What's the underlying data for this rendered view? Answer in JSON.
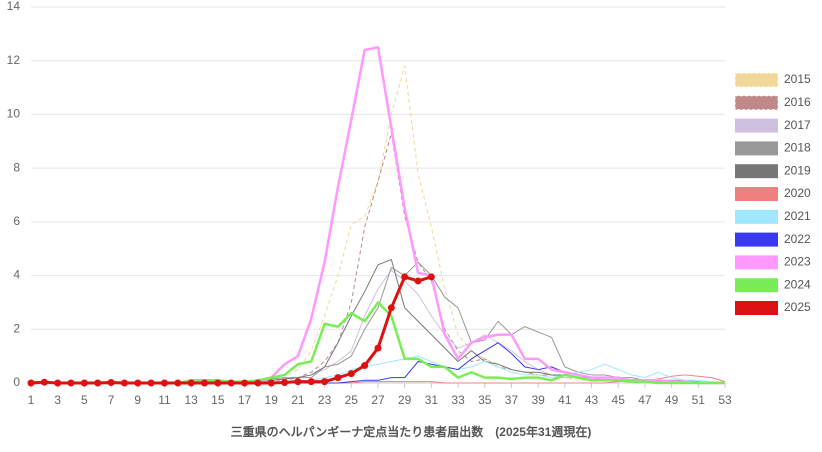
{
  "chart_data": {
    "type": "line",
    "xlabel": "三重県のヘルパンギーナ定点当たり患者届出数　(2025年31週現在)",
    "x": [
      1,
      2,
      3,
      4,
      5,
      6,
      7,
      8,
      9,
      10,
      11,
      12,
      13,
      14,
      15,
      16,
      17,
      18,
      19,
      20,
      21,
      22,
      23,
      24,
      25,
      26,
      27,
      28,
      29,
      30,
      31,
      32,
      33,
      34,
      35,
      36,
      37,
      38,
      39,
      40,
      41,
      42,
      43,
      44,
      45,
      46,
      47,
      48,
      49,
      50,
      51,
      52,
      53
    ],
    "xlim": [
      1,
      53
    ],
    "xticks": [
      1,
      3,
      5,
      7,
      9,
      11,
      13,
      15,
      17,
      19,
      21,
      23,
      25,
      27,
      29,
      31,
      33,
      35,
      37,
      39,
      41,
      43,
      45,
      47,
      49,
      51,
      53
    ],
    "ylim": [
      0,
      14
    ],
    "yticks": [
      0,
      2,
      4,
      6,
      8,
      10,
      12,
      14
    ],
    "grid": true,
    "legend": "right",
    "series": [
      {
        "name": "2015",
        "color": "#f0d898",
        "dash": true,
        "line_width": 1,
        "values": [
          0,
          0,
          0,
          0.05,
          0,
          0,
          0,
          0,
          0,
          0,
          0,
          0,
          0,
          0,
          0,
          0,
          0.05,
          0.1,
          0.1,
          0.2,
          0.5,
          1.2,
          2.5,
          4,
          5.9,
          6.2,
          7.5,
          10,
          11.8,
          7.8,
          5.8,
          3.5,
          1.8,
          1.2,
          0.9,
          0.7,
          0.5,
          0.4,
          0.3,
          0.3,
          0.2,
          0.1,
          0.1,
          0.1,
          0.1,
          0.1,
          0.05,
          0.05,
          0,
          0,
          0,
          0,
          0
        ]
      },
      {
        "name": "2016",
        "color": "#c08888",
        "dash": true,
        "line_width": 1,
        "values": [
          0,
          0,
          0,
          0,
          0,
          0,
          0,
          0,
          0,
          0,
          0,
          0,
          0,
          0,
          0,
          0,
          0,
          0.05,
          0.1,
          0.1,
          0.2,
          0.4,
          0.8,
          1.5,
          3,
          5.8,
          7.5,
          9.3,
          6.2,
          4.5,
          3.8,
          2,
          1.2,
          0.8,
          0.9,
          0.6,
          0.5,
          0.4,
          0.3,
          0.3,
          0.2,
          0.2,
          0.1,
          0.1,
          0.1,
          0.1,
          0.05,
          0,
          0,
          0,
          0,
          0,
          0
        ]
      },
      {
        "name": "2017",
        "color": "#d0c0e0",
        "dash": false,
        "line_width": 1,
        "values": [
          0.05,
          0,
          0,
          0,
          0,
          0,
          0,
          0,
          0,
          0,
          0,
          0,
          0,
          0,
          0,
          0,
          0,
          0.05,
          0.1,
          0.15,
          0.2,
          0.3,
          0.5,
          0.8,
          1.2,
          2.5,
          3.5,
          4.2,
          3.8,
          3.3,
          2.5,
          1.8,
          1.3,
          1.5,
          1.8,
          1.5,
          1.2,
          0.8,
          0.5,
          0.3,
          0.2,
          0.2,
          0.1,
          0.1,
          0.1,
          0.1,
          0.05,
          0.05,
          0,
          0,
          0,
          0,
          0
        ]
      },
      {
        "name": "2018",
        "color": "#999999",
        "dash": false,
        "line_width": 1,
        "values": [
          0,
          0,
          0,
          0,
          0,
          0,
          0,
          0,
          0,
          0,
          0,
          0,
          0,
          0,
          0,
          0,
          0,
          0.1,
          0.15,
          0.2,
          0.2,
          0.2,
          0.6,
          0.7,
          1.0,
          2.0,
          2.8,
          4.3,
          4.0,
          4.5,
          4.0,
          3.2,
          2.8,
          1.5,
          1.6,
          2.3,
          1.8,
          2.1,
          1.9,
          1.7,
          0.6,
          0.4,
          0.3,
          0.3,
          0.2,
          0.2,
          0.1,
          0.1,
          0.1,
          0.1,
          0.05,
          0,
          0
        ]
      },
      {
        "name": "2019",
        "color": "#777777",
        "dash": false,
        "line_width": 1,
        "values": [
          0,
          0,
          0,
          0,
          0,
          0,
          0,
          0,
          0,
          0,
          0,
          0,
          0,
          0,
          0,
          0,
          0,
          0.05,
          0.1,
          0.15,
          0.2,
          0.3,
          0.6,
          1.5,
          2.5,
          3.4,
          4.4,
          4.6,
          2.8,
          2.3,
          1.8,
          1.3,
          0.8,
          1.2,
          0.8,
          0.7,
          0.5,
          0.4,
          0.4,
          0.3,
          0.3,
          0.2,
          0.2,
          0.1,
          0.1,
          0.1,
          0.1,
          0.05,
          0.05,
          0,
          0,
          0,
          0
        ]
      },
      {
        "name": "2020",
        "color": "#f08080",
        "dash": false,
        "line_width": 1,
        "values": [
          0,
          0,
          0,
          0,
          0,
          0,
          0,
          0,
          0,
          0,
          0,
          0,
          0,
          0,
          0,
          0,
          0,
          0,
          0,
          0,
          0,
          0,
          0,
          0,
          0,
          0.05,
          0.05,
          0.05,
          0.05,
          0.05,
          0.05,
          0,
          0,
          0,
          0,
          0,
          0,
          0,
          0,
          0,
          0,
          0,
          0,
          0,
          0.05,
          0.1,
          0.1,
          0.15,
          0.25,
          0.3,
          0.25,
          0.2,
          0.05
        ]
      },
      {
        "name": "2021",
        "color": "#a0e8ff",
        "dash": false,
        "line_width": 1,
        "values": [
          0,
          0,
          0,
          0,
          0,
          0,
          0,
          0,
          0,
          0,
          0,
          0,
          0,
          0,
          0,
          0,
          0,
          0,
          0,
          0,
          0.05,
          0.1,
          0.2,
          0.3,
          0.5,
          0.6,
          0.7,
          0.8,
          0.9,
          1.0,
          0.8,
          0.6,
          0.5,
          0.6,
          0.8,
          0.6,
          0.4,
          0.3,
          0.3,
          0.2,
          0.3,
          0.4,
          0.5,
          0.7,
          0.5,
          0.3,
          0.2,
          0.4,
          0.2,
          0.1,
          0.1,
          0.05,
          0
        ]
      },
      {
        "name": "2022",
        "color": "#3838f0",
        "dash": false,
        "line_width": 1,
        "values": [
          0,
          0,
          0,
          0,
          0,
          0,
          0,
          0,
          0,
          0,
          0,
          0,
          0,
          0,
          0,
          0,
          0,
          0,
          0,
          0,
          0,
          0,
          0,
          0,
          0.05,
          0.1,
          0.1,
          0.2,
          0.2,
          0.8,
          0.7,
          0.6,
          0.5,
          0.9,
          1.2,
          1.5,
          1.1,
          0.6,
          0.5,
          0.6,
          0.4,
          0.3,
          0.2,
          0.2,
          0.2,
          0.1,
          0.1,
          0.1,
          0.05,
          0.05,
          0,
          0,
          0
        ]
      },
      {
        "name": "2023",
        "color": "#ff99ff",
        "dash": false,
        "line_width": 2.5,
        "values": [
          0,
          0,
          0,
          0,
          0,
          0,
          0,
          0,
          0,
          0,
          0,
          0,
          0,
          0,
          0,
          0,
          0,
          0,
          0.2,
          0.7,
          1.0,
          2.4,
          4.5,
          7.3,
          9.8,
          12.4,
          12.5,
          9.5,
          6.5,
          4.1,
          4.0,
          1.8,
          0.9,
          1.5,
          1.7,
          1.8,
          1.8,
          0.9,
          0.9,
          0.5,
          0.4,
          0.3,
          0.2,
          0.2,
          0.2,
          0.1,
          0.1,
          0.1,
          0.05,
          0.05,
          0,
          0,
          0
        ]
      },
      {
        "name": "2024",
        "color": "#77ee55",
        "dash": false,
        "line_width": 2.5,
        "values": [
          0.05,
          0.02,
          0,
          0,
          0,
          0,
          0,
          0,
          0,
          0,
          0,
          0,
          0.1,
          0.1,
          0.1,
          0.05,
          0.05,
          0.1,
          0.2,
          0.3,
          0.7,
          0.8,
          2.2,
          2.1,
          2.6,
          2.3,
          3.0,
          2.5,
          0.9,
          0.9,
          0.6,
          0.6,
          0.2,
          0.4,
          0.2,
          0.2,
          0.15,
          0.2,
          0.2,
          0.1,
          0.3,
          0.2,
          0.1,
          0.1,
          0.1,
          0.05,
          0.05,
          0,
          0,
          0,
          0,
          0,
          0
        ]
      },
      {
        "name": "2025",
        "color": "#dd1111",
        "dash": false,
        "line_width": 3,
        "markers": true,
        "values": [
          0,
          0.03,
          0,
          0,
          0,
          0,
          0.02,
          0,
          0,
          0,
          0,
          0,
          0,
          0,
          0,
          0,
          0,
          0,
          0,
          0.02,
          0.05,
          0.05,
          0.05,
          0.2,
          0.35,
          0.65,
          1.3,
          2.8,
          3.95,
          3.8,
          3.95,
          null,
          null,
          null,
          null,
          null,
          null,
          null,
          null,
          null,
          null,
          null,
          null,
          null,
          null,
          null,
          null,
          null,
          null,
          null,
          null,
          null,
          null
        ]
      }
    ]
  }
}
